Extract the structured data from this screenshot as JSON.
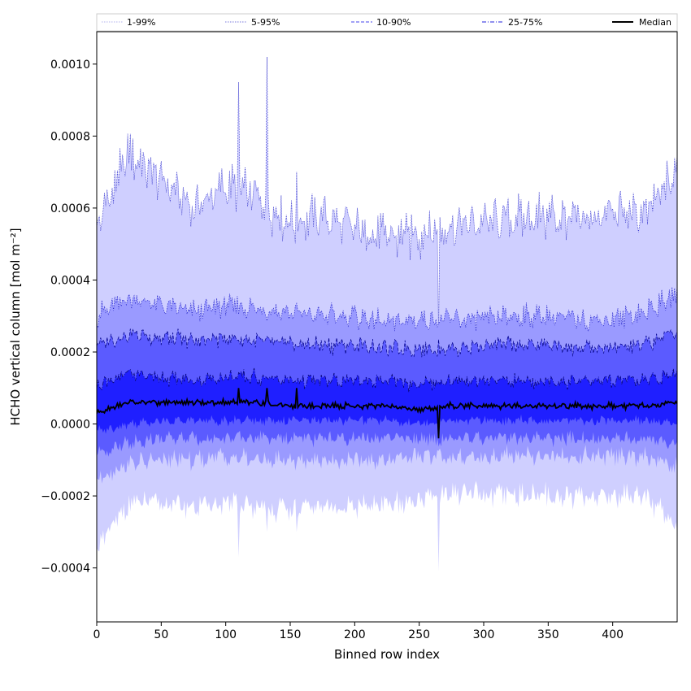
{
  "chart_data": {
    "type": "area",
    "title": "",
    "xlabel": "Binned row index",
    "ylabel": "HCHO vertical column [mol m⁻²]",
    "xlim": [
      0,
      450
    ],
    "ylim": [
      -0.00055,
      0.00109
    ],
    "xticks": [
      0,
      50,
      100,
      150,
      200,
      250,
      300,
      350,
      400
    ],
    "xtick_labels": [
      "0",
      "50",
      "100",
      "150",
      "200",
      "250",
      "300",
      "350",
      "400"
    ],
    "yticks": [
      -0.0004,
      -0.0002,
      0.0,
      0.0002,
      0.0004,
      0.0006,
      0.0008,
      0.001
    ],
    "ytick_labels": [
      "−0.0004",
      "−0.0002",
      "0.0000",
      "0.0002",
      "0.0004",
      "0.0006",
      "0.0008",
      "0.0010"
    ],
    "grid": false,
    "legend_position": "top, spanning full width",
    "legend": [
      {
        "label": "1-99%",
        "color": "#cfcfff",
        "style": "dotted"
      },
      {
        "label": "5-95%",
        "color": "#9a9aff",
        "style": "dotted"
      },
      {
        "label": "10-90%",
        "color": "#5b5bff",
        "style": "dashed"
      },
      {
        "label": "25-75%",
        "color": "#1f1fff",
        "style": "dashdot"
      },
      {
        "label": "Median",
        "color": "#000000",
        "style": "solid"
      }
    ],
    "x_samples": [
      0,
      25,
      50,
      75,
      100,
      125,
      150,
      175,
      200,
      225,
      250,
      275,
      300,
      325,
      350,
      375,
      400,
      425,
      450
    ],
    "bands": [
      {
        "name": "1-99%",
        "color": "#cfcfff",
        "upper": [
          0.00055,
          0.00075,
          0.00068,
          0.0006,
          0.00066,
          0.00063,
          0.00056,
          0.00058,
          0.00054,
          0.00052,
          0.00053,
          0.00055,
          0.00056,
          0.00057,
          0.00058,
          0.00056,
          0.00059,
          0.00058,
          0.0007
        ],
        "lower": [
          -0.00035,
          -0.00022,
          -0.00022,
          -0.00023,
          -0.00022,
          -0.00023,
          -0.00024,
          -0.00023,
          -0.00023,
          -0.00023,
          -0.00021,
          -0.00019,
          -0.0002,
          -0.0002,
          -0.0002,
          -0.0002,
          -0.0002,
          -0.00019,
          -0.0003
        ]
      },
      {
        "name": "5-95%",
        "color": "#9a9aff",
        "upper": [
          0.0003,
          0.00035,
          0.00033,
          0.00031,
          0.00033,
          0.00032,
          0.00031,
          0.0003,
          0.0003,
          0.00028,
          0.00029,
          0.00029,
          0.00029,
          0.0003,
          0.0003,
          0.00029,
          0.00029,
          0.00031,
          0.00036
        ],
        "lower": [
          -0.00015,
          -0.00011,
          -0.0001,
          -0.0001,
          -9e-05,
          -0.0001,
          -0.0001,
          -0.0001,
          -0.0001,
          -0.0001,
          -9e-05,
          -9e-05,
          -9e-05,
          -9e-05,
          -9e-05,
          -9e-05,
          -9e-05,
          -9e-05,
          -0.00012
        ]
      },
      {
        "name": "10-90%",
        "color": "#5b5bff",
        "upper": [
          0.00022,
          0.00025,
          0.00024,
          0.00023,
          0.00024,
          0.00023,
          0.00022,
          0.00022,
          0.00022,
          0.00021,
          0.00021,
          0.00021,
          0.00022,
          0.00022,
          0.00022,
          0.00021,
          0.00021,
          0.00022,
          0.00026
        ],
        "lower": [
          -8e-05,
          -5e-05,
          -4e-05,
          -4e-05,
          -4e-05,
          -4e-05,
          -4e-05,
          -4e-05,
          -4e-05,
          -4e-05,
          -4e-05,
          -4e-05,
          -4e-05,
          -4e-05,
          -4e-05,
          -4e-05,
          -4e-05,
          -4e-05,
          -6e-05
        ]
      },
      {
        "name": "25-75%",
        "color": "#1f1fff",
        "upper": [
          0.00011,
          0.00014,
          0.00013,
          0.00012,
          0.00013,
          0.00013,
          0.00012,
          0.00012,
          0.00012,
          0.00012,
          0.00011,
          0.00012,
          0.00012,
          0.00012,
          0.00012,
          0.00012,
          0.00012,
          0.00012,
          0.00014
        ],
        "lower": [
          -2e-05,
          0.0,
          1e-05,
          1e-05,
          1e-05,
          1e-05,
          1e-05,
          1e-05,
          1e-05,
          1e-05,
          0.0,
          1e-05,
          1e-05,
          1e-05,
          1e-05,
          1e-05,
          1e-05,
          1e-05,
          0.0
        ]
      }
    ],
    "median": {
      "name": "Median",
      "color": "#000000",
      "values": [
        3e-05,
        6e-05,
        6e-05,
        6e-05,
        6e-05,
        6e-05,
        5e-05,
        5e-05,
        5e-05,
        5e-05,
        4e-05,
        5e-05,
        5e-05,
        5e-05,
        5e-05,
        5e-05,
        5e-05,
        5e-05,
        6e-05
      ]
    },
    "spikes": [
      {
        "x": 110,
        "value": 0.00095,
        "min": -0.00037
      },
      {
        "x": 132,
        "value": 0.00102,
        "min": -0.0003
      },
      {
        "x": 155,
        "value": 0.0007,
        "min": -0.0003
      },
      {
        "x": 265,
        "value": 0.00025,
        "min": -0.00041
      }
    ]
  }
}
